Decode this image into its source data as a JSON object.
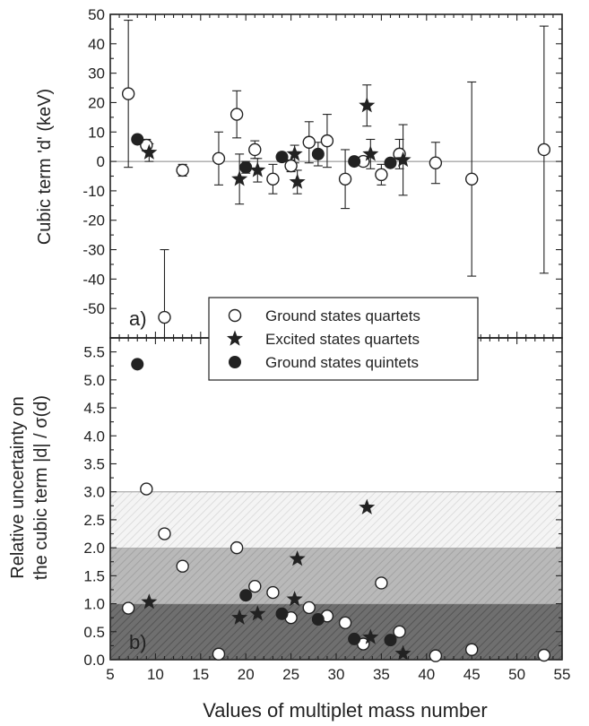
{
  "chart_data": [
    {
      "type": "scatter",
      "panel_label": "a)",
      "ylabel": "Cubic term 'd' (keV)",
      "xlim": [
        5,
        55
      ],
      "ylim": [
        -60,
        50
      ],
      "yticks": [
        50,
        40,
        30,
        20,
        10,
        0,
        -10,
        -20,
        -30,
        -40,
        -50
      ],
      "reference_line": 0,
      "series": [
        {
          "name": "Ground states quartets",
          "marker": "open-circle",
          "points": [
            {
              "x": 7,
              "y": 23,
              "err": 25
            },
            {
              "x": 9,
              "y": 5.5,
              "err": 2
            },
            {
              "x": 11,
              "y": -53,
              "err": 23
            },
            {
              "x": 13,
              "y": -3,
              "err": 2
            },
            {
              "x": 17,
              "y": 1,
              "err": 9
            },
            {
              "x": 19,
              "y": 16,
              "err": 8
            },
            {
              "x": 21,
              "y": 4,
              "err": 3
            },
            {
              "x": 23,
              "y": -6,
              "err": 5
            },
            {
              "x": 25,
              "y": -1.5,
              "err": 2
            },
            {
              "x": 27,
              "y": 6.5,
              "err": 7
            },
            {
              "x": 29,
              "y": 7,
              "err": 9
            },
            {
              "x": 31,
              "y": -6,
              "err": 10
            },
            {
              "x": 33,
              "y": 0,
              "err": 1.5
            },
            {
              "x": 35,
              "y": -4.5,
              "err": 3.5
            },
            {
              "x": 37,
              "y": 2.5,
              "err": 5
            },
            {
              "x": 41,
              "y": -0.5,
              "err": 7
            },
            {
              "x": 45,
              "y": -6,
              "err": 33
            },
            {
              "x": 53,
              "y": 4,
              "err": 42
            }
          ]
        },
        {
          "name": "Excited states quartets",
          "marker": "star",
          "points": [
            {
              "x": 9.3,
              "y": 3,
              "err": 3
            },
            {
              "x": 19.3,
              "y": -6,
              "err": 8.5
            },
            {
              "x": 21.3,
              "y": -3,
              "err": 4
            },
            {
              "x": 25.4,
              "y": 2.5,
              "err": 3
            },
            {
              "x": 25.7,
              "y": -7,
              "err": 4
            },
            {
              "x": 33.4,
              "y": 19,
              "err": 7
            },
            {
              "x": 33.8,
              "y": 2.5,
              "err": 5
            },
            {
              "x": 37.4,
              "y": 0.5,
              "err": 12
            }
          ]
        },
        {
          "name": "Ground states quintets",
          "marker": "filled-circle",
          "points": [
            {
              "x": 8,
              "y": 7.5,
              "err": 0.5
            },
            {
              "x": 20,
              "y": -2,
              "err": 2
            },
            {
              "x": 24,
              "y": 1.5,
              "err": 1.5
            },
            {
              "x": 28,
              "y": 2.5,
              "err": 4
            },
            {
              "x": 32,
              "y": 0,
              "err": 0
            },
            {
              "x": 36,
              "y": -0.5,
              "err": 1
            }
          ]
        }
      ]
    },
    {
      "type": "scatter",
      "panel_label": "b)",
      "ylabel_lines": [
        "Relative uncertainty on",
        "the cubic term |d| / σ(d)"
      ],
      "xlabel": "Values of multiplet mass number",
      "xlim": [
        5,
        55
      ],
      "xticks": [
        5,
        10,
        15,
        20,
        25,
        30,
        35,
        40,
        45,
        50,
        55
      ],
      "xtick_labels": [
        "5",
        "10",
        "15",
        "20",
        "25",
        "30",
        "35",
        "40",
        "45",
        "50",
        "55"
      ],
      "ylim": [
        0,
        5.75
      ],
      "yticks": [
        0,
        0.5,
        1.0,
        1.5,
        2.0,
        2.5,
        3.0,
        3.5,
        4.0,
        4.5,
        5.0,
        5.5
      ],
      "ytick_labels": [
        "0.0",
        "0.5",
        "1.0",
        "1.5",
        "2.0",
        "2.5",
        "3.0",
        "3.5",
        "4.0",
        "4.5",
        "5.0",
        "5.5"
      ],
      "bands": [
        {
          "y0": 0,
          "y1": 1,
          "shade": "dark"
        },
        {
          "y0": 1,
          "y1": 2,
          "shade": "medium"
        },
        {
          "y0": 2,
          "y1": 3,
          "shade": "light"
        }
      ],
      "series": [
        {
          "name": "Ground states quartets",
          "marker": "open-circle",
          "points": [
            {
              "x": 7,
              "y": 0.92
            },
            {
              "x": 9,
              "y": 3.05
            },
            {
              "x": 11,
              "y": 2.25
            },
            {
              "x": 13,
              "y": 1.67
            },
            {
              "x": 17,
              "y": 0.1
            },
            {
              "x": 19,
              "y": 2.0
            },
            {
              "x": 21,
              "y": 1.31
            },
            {
              "x": 23,
              "y": 1.2
            },
            {
              "x": 25,
              "y": 0.75
            },
            {
              "x": 27,
              "y": 0.93
            },
            {
              "x": 29,
              "y": 0.78
            },
            {
              "x": 31,
              "y": 0.66
            },
            {
              "x": 33,
              "y": 0.28
            },
            {
              "x": 35,
              "y": 1.37
            },
            {
              "x": 37,
              "y": 0.5
            },
            {
              "x": 41,
              "y": 0.07
            },
            {
              "x": 45,
              "y": 0.18
            },
            {
              "x": 53,
              "y": 0.08
            }
          ]
        },
        {
          "name": "Excited states quartets",
          "marker": "star",
          "points": [
            {
              "x": 9.3,
              "y": 1.03
            },
            {
              "x": 19.3,
              "y": 0.75
            },
            {
              "x": 21.3,
              "y": 0.82
            },
            {
              "x": 25.4,
              "y": 1.08
            },
            {
              "x": 25.7,
              "y": 1.8
            },
            {
              "x": 33.4,
              "y": 2.72
            },
            {
              "x": 33.8,
              "y": 0.4
            },
            {
              "x": 37.4,
              "y": 0.11
            }
          ]
        },
        {
          "name": "Ground states quintets",
          "marker": "filled-circle",
          "points": [
            {
              "x": 8,
              "y": 5.28
            },
            {
              "x": 20,
              "y": 1.15
            },
            {
              "x": 24,
              "y": 0.82
            },
            {
              "x": 28,
              "y": 0.72
            },
            {
              "x": 32,
              "y": 0.37
            },
            {
              "x": 36,
              "y": 0.35
            }
          ]
        }
      ]
    }
  ],
  "legend": {
    "placement": "bottom-center of panel a",
    "entries": [
      "Ground states quartets",
      "Excited states quartets",
      "Ground states quintets"
    ]
  }
}
